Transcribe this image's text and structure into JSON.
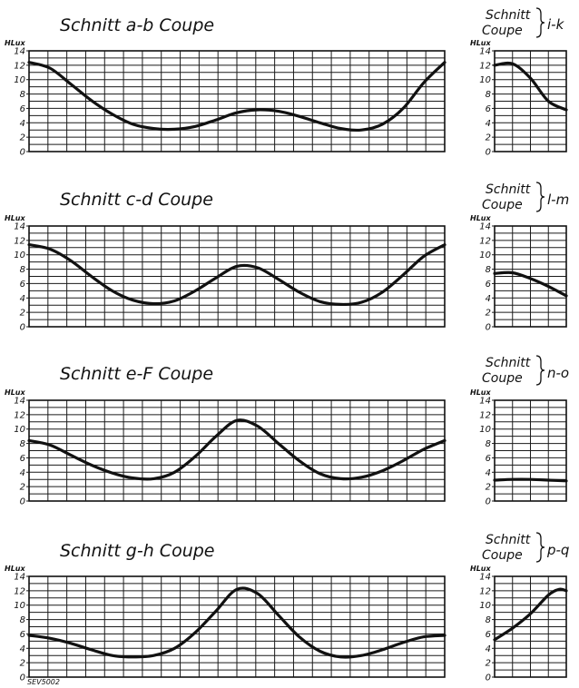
{
  "figure": {
    "footnote": "SEV5002"
  },
  "chart_data": [
    {
      "type": "line",
      "title": "Schnitt a-b Coupe",
      "section": "a-b",
      "ylabel": "HLux",
      "ylim": [
        0,
        14
      ],
      "yticks": [
        0,
        2,
        4,
        6,
        8,
        10,
        12,
        14
      ],
      "grid": true,
      "xlim": [
        0,
        1
      ],
      "x": [
        0,
        0.05,
        0.1,
        0.15,
        0.2,
        0.25,
        0.3,
        0.35,
        0.4,
        0.45,
        0.5,
        0.55,
        0.6,
        0.65,
        0.7,
        0.75,
        0.8,
        0.85,
        0.9,
        0.95,
        1
      ],
      "values": [
        12.4,
        11.6,
        9.4,
        7.1,
        5.2,
        3.8,
        3.2,
        3.1,
        3.5,
        4.4,
        5.4,
        5.8,
        5.6,
        4.9,
        4.0,
        3.2,
        3.0,
        3.8,
        6.0,
        9.6,
        12.4
      ]
    },
    {
      "type": "line",
      "title": "Schnitt Coupe i-k",
      "section": "i-k",
      "ylabel": "HLux",
      "ylim": [
        0,
        14
      ],
      "yticks": [
        0,
        2,
        4,
        6,
        8,
        10,
        12,
        14
      ],
      "grid": true,
      "xlim": [
        0,
        1
      ],
      "x": [
        0,
        0.25,
        0.5,
        0.75,
        1
      ],
      "values": [
        12.0,
        12.2,
        10.2,
        7.0,
        5.8
      ]
    },
    {
      "type": "line",
      "title": "Schnitt c-d Coupe",
      "section": "c-d",
      "ylabel": "HLux",
      "ylim": [
        0,
        14
      ],
      "yticks": [
        0,
        2,
        4,
        6,
        8,
        10,
        12,
        14
      ],
      "grid": true,
      "xlim": [
        0,
        1
      ],
      "x": [
        0,
        0.05,
        0.1,
        0.15,
        0.2,
        0.25,
        0.3,
        0.35,
        0.4,
        0.45,
        0.5,
        0.55,
        0.6,
        0.65,
        0.7,
        0.75,
        0.8,
        0.85,
        0.9,
        0.95,
        1
      ],
      "values": [
        11.4,
        10.8,
        9.2,
        7.0,
        5.0,
        3.7,
        3.2,
        3.6,
        5.0,
        6.8,
        8.4,
        8.2,
        6.6,
        4.8,
        3.5,
        3.1,
        3.4,
        4.8,
        7.2,
        9.8,
        11.4
      ]
    },
    {
      "type": "line",
      "title": "Schnitt Coupe l-m",
      "section": "l-m",
      "ylabel": "HLux",
      "ylim": [
        0,
        14
      ],
      "yticks": [
        0,
        2,
        4,
        6,
        8,
        10,
        12,
        14
      ],
      "grid": true,
      "xlim": [
        0,
        1
      ],
      "x": [
        0,
        0.25,
        0.5,
        0.75,
        1
      ],
      "values": [
        7.4,
        7.5,
        6.7,
        5.6,
        4.3
      ]
    },
    {
      "type": "line",
      "title": "Schnitt e-F Coupe",
      "section": "e-F",
      "ylabel": "HLux",
      "ylim": [
        0,
        14
      ],
      "yticks": [
        0,
        2,
        4,
        6,
        8,
        10,
        12,
        14
      ],
      "grid": true,
      "xlim": [
        0,
        1
      ],
      "x": [
        0,
        0.05,
        0.1,
        0.15,
        0.2,
        0.25,
        0.3,
        0.35,
        0.4,
        0.45,
        0.5,
        0.55,
        0.6,
        0.65,
        0.7,
        0.75,
        0.8,
        0.85,
        0.9,
        0.95,
        1
      ],
      "values": [
        8.4,
        7.8,
        6.4,
        5.0,
        3.9,
        3.2,
        3.1,
        4.0,
        6.2,
        9.0,
        11.2,
        10.4,
        8.0,
        5.6,
        3.8,
        3.1,
        3.3,
        4.2,
        5.6,
        7.2,
        8.4
      ]
    },
    {
      "type": "line",
      "title": "Schnitt Coupe n-o",
      "section": "n-o",
      "ylabel": "HLux",
      "ylim": [
        0,
        14
      ],
      "yticks": [
        0,
        2,
        4,
        6,
        8,
        10,
        12,
        14
      ],
      "grid": true,
      "xlim": [
        0,
        1
      ],
      "x": [
        0,
        0.25,
        0.5,
        0.75,
        1
      ],
      "values": [
        2.9,
        3.0,
        3.0,
        2.9,
        2.8
      ]
    },
    {
      "type": "line",
      "title": "Schnitt g-h Coupe",
      "section": "g-h",
      "ylabel": "HLux",
      "ylim": [
        0,
        14
      ],
      "yticks": [
        0,
        2,
        4,
        6,
        8,
        10,
        12,
        14
      ],
      "grid": true,
      "xlim": [
        0,
        1
      ],
      "x": [
        0,
        0.05,
        0.1,
        0.15,
        0.2,
        0.25,
        0.3,
        0.35,
        0.4,
        0.45,
        0.5,
        0.55,
        0.6,
        0.65,
        0.7,
        0.75,
        0.8,
        0.85,
        0.9,
        0.95,
        1
      ],
      "values": [
        5.8,
        5.4,
        4.7,
        3.8,
        3.0,
        2.8,
        3.0,
        4.0,
        6.2,
        9.2,
        12.2,
        11.6,
        8.6,
        5.6,
        3.6,
        2.8,
        3.0,
        3.8,
        4.8,
        5.6,
        5.8
      ]
    },
    {
      "type": "line",
      "title": "Schnitt Coupe p-q",
      "section": "p-q",
      "ylabel": "HLux",
      "ylim": [
        0,
        14
      ],
      "yticks": [
        0,
        2,
        4,
        6,
        8,
        10,
        12,
        14
      ],
      "grid": true,
      "xlim": [
        0,
        1
      ],
      "x": [
        0,
        0.25,
        0.5,
        0.75,
        0.9,
        1
      ],
      "values": [
        5.2,
        6.8,
        8.8,
        11.4,
        12.2,
        12.0
      ]
    }
  ]
}
